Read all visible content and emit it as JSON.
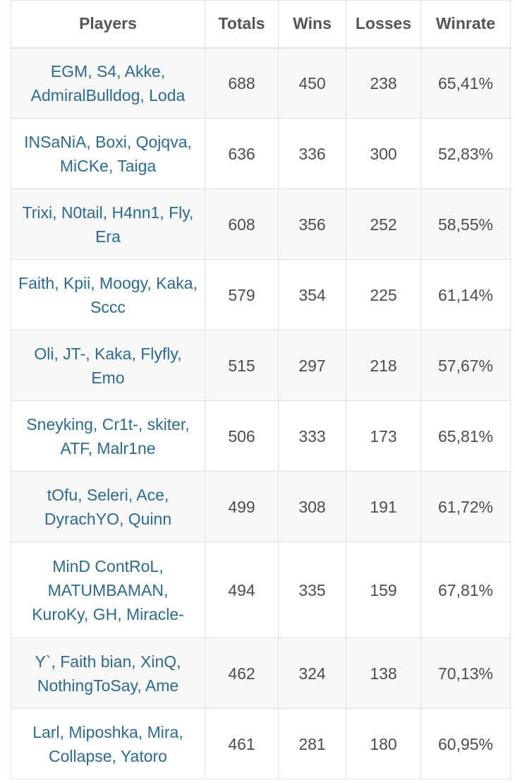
{
  "table": {
    "headers": {
      "players": "Players",
      "totals": "Totals",
      "wins": "Wins",
      "losses": "Losses",
      "winrate": "Winrate"
    },
    "rows": [
      {
        "players": "EGM, S4, Akke, AdmiralBulldog, Loda",
        "totals": "688",
        "wins": "450",
        "losses": "238",
        "winrate": "65,41%"
      },
      {
        "players": "INSaNiA, Boxi, Qojqva, MiCKe, Taiga",
        "totals": "636",
        "wins": "336",
        "losses": "300",
        "winrate": "52,83%"
      },
      {
        "players": "Trixi, N0tail, H4nn1, Fly, Era",
        "totals": "608",
        "wins": "356",
        "losses": "252",
        "winrate": "58,55%"
      },
      {
        "players": "Faith, Kpii, Moogy, Kaka, Sccc",
        "totals": "579",
        "wins": "354",
        "losses": "225",
        "winrate": "61,14%"
      },
      {
        "players": "Oli, JT-, Kaka, Flyfly, Emo",
        "totals": "515",
        "wins": "297",
        "losses": "218",
        "winrate": "57,67%"
      },
      {
        "players": "Sneyking, Cr1t-, skiter, ATF, Malr1ne",
        "totals": "506",
        "wins": "333",
        "losses": "173",
        "winrate": "65,81%"
      },
      {
        "players": "tOfu, Seleri, Ace, DyrachYO, Quinn",
        "totals": "499",
        "wins": "308",
        "losses": "191",
        "winrate": "61,72%"
      },
      {
        "players": "MinD ContRoL, MATUMBAMAN, KuroKy, GH, Miracle-",
        "totals": "494",
        "wins": "335",
        "losses": "159",
        "winrate": "67,81%"
      },
      {
        "players": "Y`, Faith bian, XinQ, NothingToSay, Ame",
        "totals": "462",
        "wins": "324",
        "losses": "138",
        "winrate": "70,13%"
      },
      {
        "players": "Larl, Miposhka, Mira, Collapse, Yatoro",
        "totals": "461",
        "wins": "281",
        "losses": "180",
        "winrate": "60,95%"
      }
    ]
  }
}
